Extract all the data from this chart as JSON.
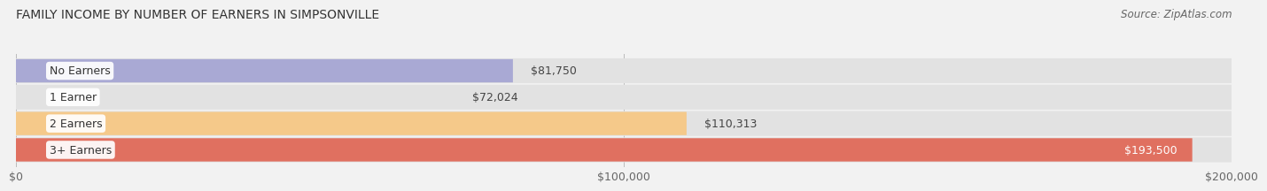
{
  "title": "FAMILY INCOME BY NUMBER OF EARNERS IN SIMPSONVILLE",
  "source": "Source: ZipAtlas.com",
  "categories": [
    "No Earners",
    "1 Earner",
    "2 Earners",
    "3+ Earners"
  ],
  "values": [
    81750,
    72024,
    110313,
    193500
  ],
  "bar_colors": [
    "#a9a9d4",
    "#f4a0b0",
    "#f5c98a",
    "#e07060"
  ],
  "label_colors": [
    "#333333",
    "#333333",
    "#333333",
    "#ffffff"
  ],
  "value_labels": [
    "$81,750",
    "$72,024",
    "$110,313",
    "$193,500"
  ],
  "xlim": [
    0,
    200000
  ],
  "xticks": [
    0,
    100000,
    200000
  ],
  "xtick_labels": [
    "$0",
    "$100,000",
    "$200,000"
  ],
  "background_color": "#f2f2f2",
  "bar_background_color": "#e2e2e2",
  "title_fontsize": 10,
  "source_fontsize": 8.5,
  "label_fontsize": 9,
  "value_fontsize": 9
}
